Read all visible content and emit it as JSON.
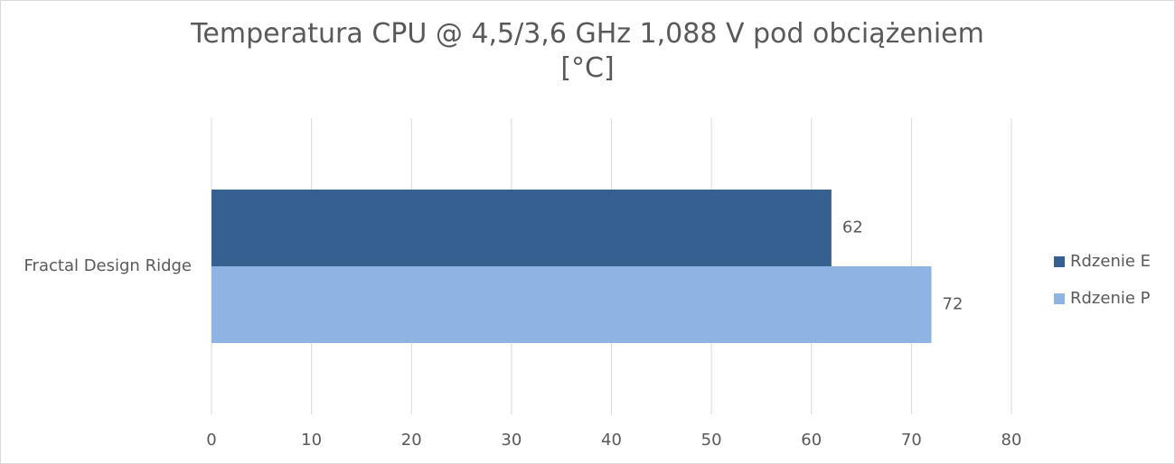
{
  "chart_data": {
    "type": "hbar",
    "title": "Temperatura CPU @ 4,5/3,6 GHz 1,088 V pod obciążeniem [°C]",
    "categories": [
      "Fractal Design Ridge"
    ],
    "series": [
      {
        "name": "Rdzenie E",
        "color": "#35608f",
        "values": [
          62
        ]
      },
      {
        "name": "Rdzenie P",
        "color": "#8eb4e3",
        "values": [
          72
        ]
      }
    ],
    "xlim": [
      0,
      80
    ],
    "xticks": [
      0,
      10,
      20,
      30,
      40,
      50,
      60,
      70,
      80
    ],
    "grid": true,
    "legend": "right"
  }
}
